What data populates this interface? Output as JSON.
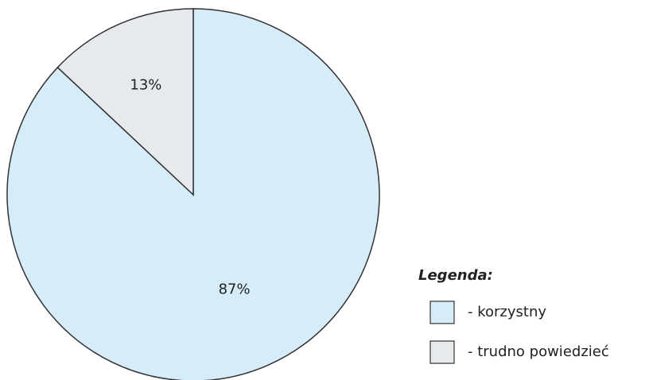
{
  "chart_data": {
    "type": "pie",
    "categories": [
      "- korzystny",
      "- trudno powiedzieć"
    ],
    "values": [
      87,
      13
    ],
    "value_labels": [
      "87%",
      "13%"
    ],
    "colors": [
      "#d6ecf9",
      "#e6e9ee"
    ],
    "legend_title": "Legenda:",
    "legend": "bottom-right"
  }
}
